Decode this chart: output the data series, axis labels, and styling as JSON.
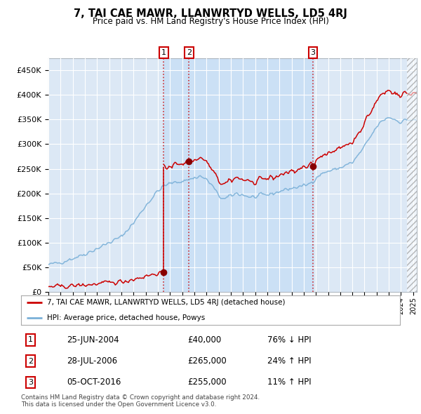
{
  "title": "7, TAI CAE MAWR, LLANWRTYD WELLS, LD5 4RJ",
  "subtitle": "Price paid vs. HM Land Registry's House Price Index (HPI)",
  "background_color": "#ffffff",
  "plot_bg_color": "#dce8f5",
  "grid_color": "#ffffff",
  "hpi_color": "#7ab0d8",
  "price_color": "#cc0000",
  "t1_year": 2004.48,
  "t1_price": 40000,
  "t2_year": 2006.57,
  "t2_price": 265000,
  "t3_year": 2016.76,
  "t3_price": 255000,
  "transaction_labels": [
    {
      "label": "1",
      "date": "25-JUN-2004",
      "price": "£40,000",
      "change": "76% ↓ HPI"
    },
    {
      "label": "2",
      "date": "28-JUL-2006",
      "price": "£265,000",
      "change": "24% ↑ HPI"
    },
    {
      "label": "3",
      "date": "05-OCT-2016",
      "price": "£255,000",
      "change": "11% ↑ HPI"
    }
  ],
  "legend_line1": "7, TAI CAE MAWR, LLANWRTYD WELLS, LD5 4RJ (detached house)",
  "legend_line2": "HPI: Average price, detached house, Powys",
  "footnote1": "Contains HM Land Registry data © Crown copyright and database right 2024.",
  "footnote2": "This data is licensed under the Open Government Licence v3.0.",
  "xmin": 1995,
  "xmax": 2025.3,
  "ymin": 0,
  "ymax": 475000,
  "yticks": [
    0,
    50000,
    100000,
    150000,
    200000,
    250000,
    300000,
    350000,
    400000,
    450000
  ],
  "xticks": [
    1995,
    1996,
    1997,
    1998,
    1999,
    2000,
    2001,
    2002,
    2003,
    2004,
    2005,
    2006,
    2007,
    2008,
    2009,
    2010,
    2011,
    2012,
    2013,
    2014,
    2015,
    2016,
    2017,
    2018,
    2019,
    2020,
    2021,
    2022,
    2023,
    2024,
    2025
  ]
}
